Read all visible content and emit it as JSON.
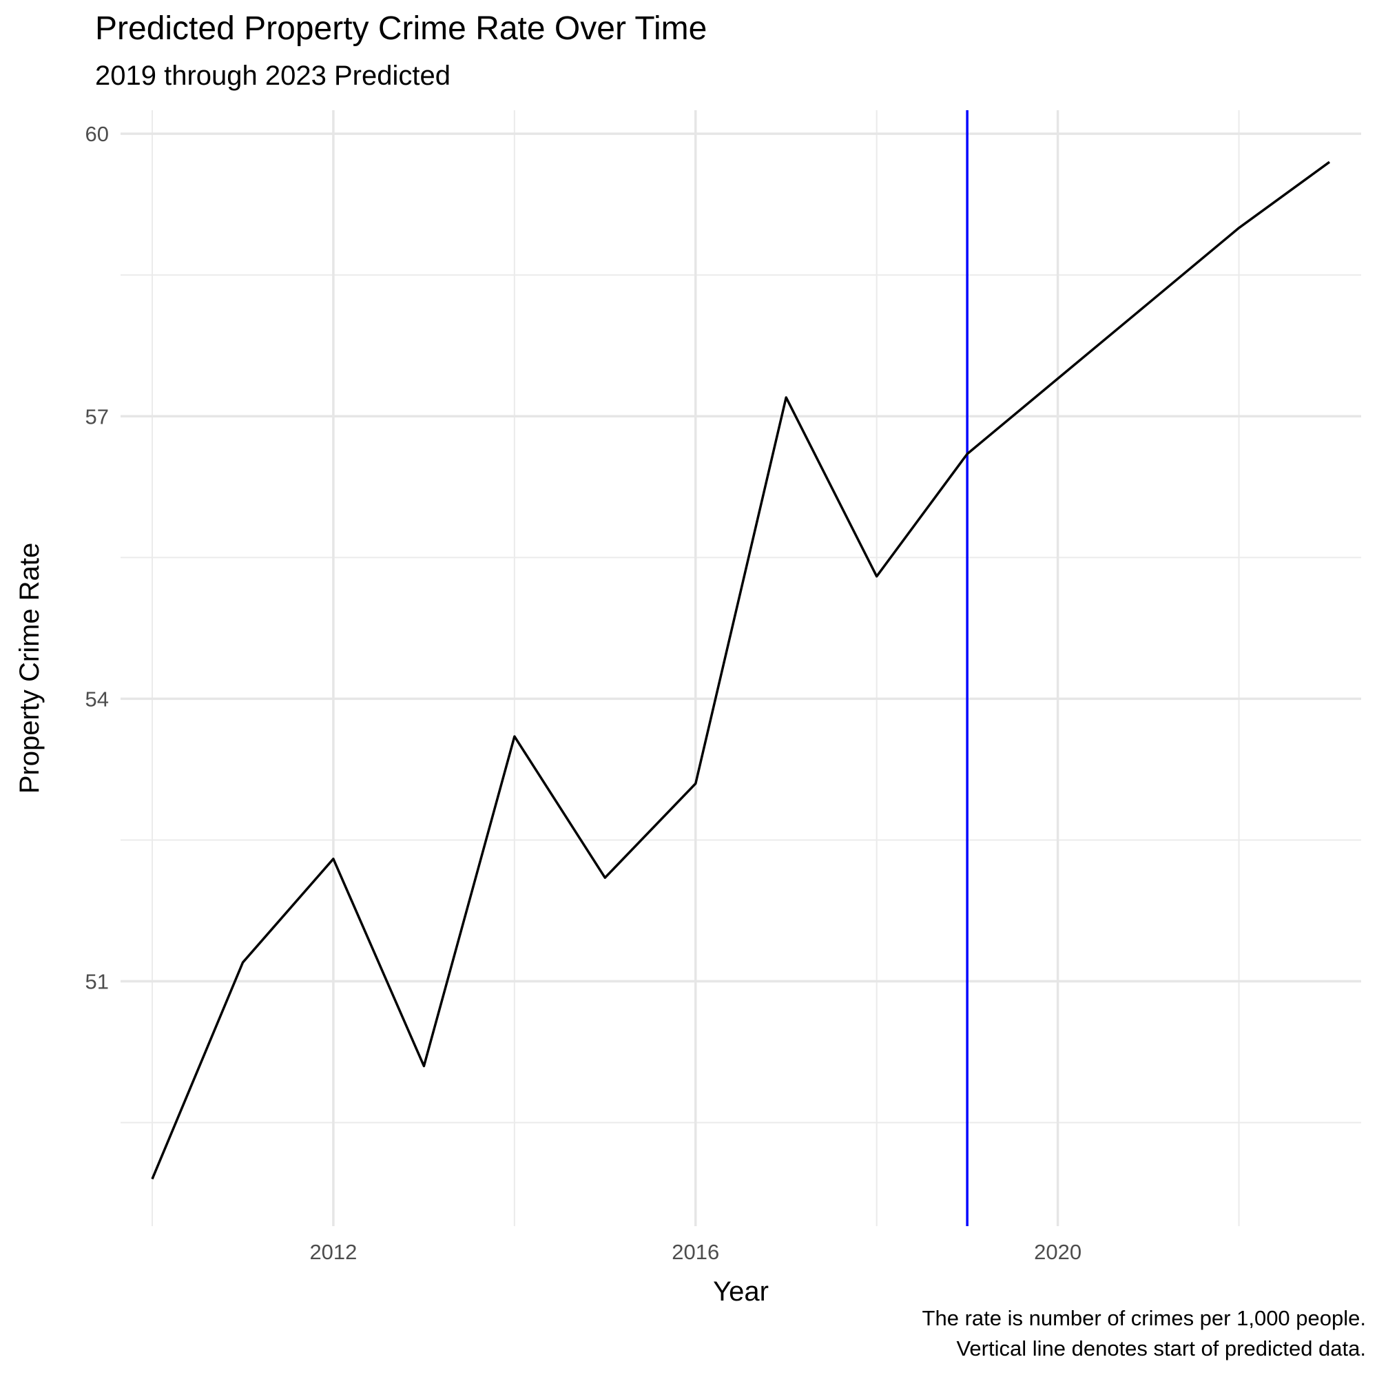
{
  "chart_data": {
    "type": "line",
    "title": "Predicted Property Crime Rate Over Time",
    "subtitle": "2019 through 2023 Predicted",
    "xlabel": "Year",
    "ylabel": "Property Crime Rate",
    "caption": [
      "The rate is number of crimes per 1,000 people.",
      "Vertical line denotes start of predicted data."
    ],
    "x": [
      2010,
      2011,
      2012,
      2013,
      2014,
      2015,
      2016,
      2017,
      2018,
      2019,
      2020,
      2021,
      2022,
      2023
    ],
    "series": [
      {
        "values": [
          48.9,
          51.2,
          52.3,
          50.1,
          53.6,
          52.1,
          53.1,
          57.2,
          55.3,
          56.6,
          57.4,
          58.2,
          59.0,
          59.7
        ],
        "color": "#000000"
      }
    ],
    "vline": {
      "x": 2019,
      "color": "#0000ff"
    },
    "xlim": [
      2009.65,
      2023.35
    ],
    "ylim": [
      48.4,
      60.25
    ],
    "x_ticks": [
      2012,
      2016,
      2020
    ],
    "x_tick_labels": [
      "2012",
      "2016",
      "2020"
    ],
    "y_ticks": [
      51,
      54,
      57,
      60
    ],
    "y_tick_labels": [
      "51",
      "54",
      "57",
      "60"
    ],
    "grid": true,
    "legend": "none"
  }
}
